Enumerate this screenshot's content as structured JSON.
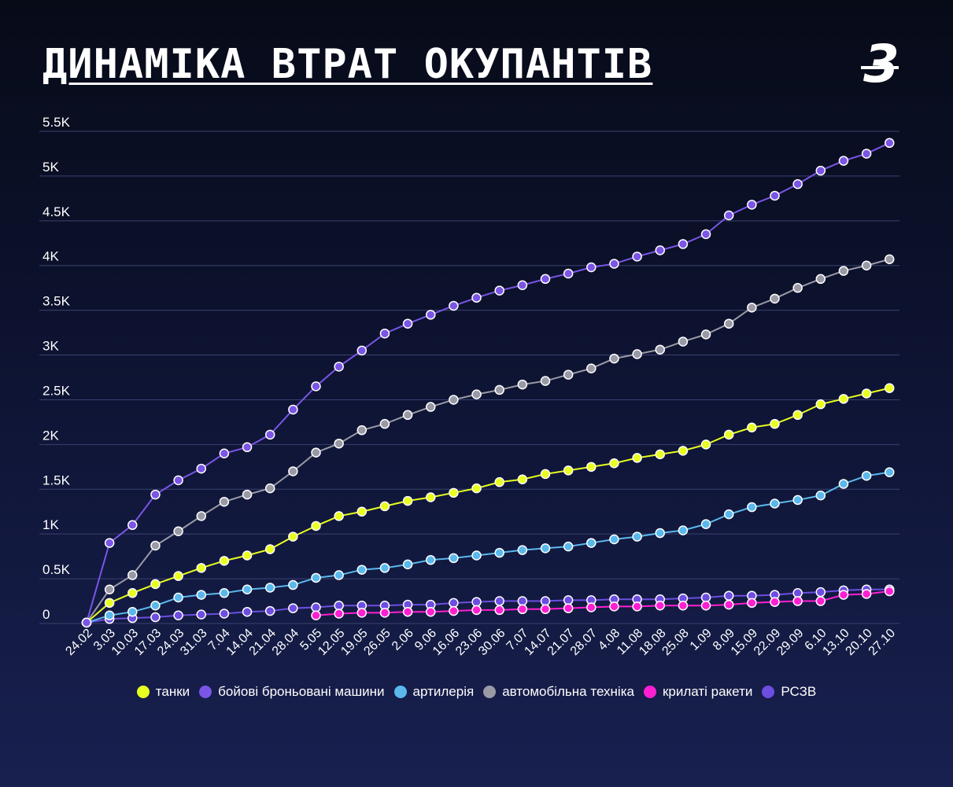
{
  "header": {
    "title": "ДИНАМІКА ВТРАТ ОКУПАНТІВ",
    "logo_glyph": "3"
  },
  "colors": {
    "background": "#0d1331",
    "grid": "#3a4270",
    "tanks": "#e8ff1f",
    "ifv": "#7a55e6",
    "artillery": "#5ab8ec",
    "vehicles": "#9a9aa6",
    "missiles": "#ff1fd2",
    "mlrs": "#6d4ee0"
  },
  "chart_data": {
    "type": "line",
    "title": "ДИНАМІКА ВТРАТ ОКУПАНТІВ",
    "xlabel": "",
    "ylabel": "",
    "ylim": [
      0,
      5500
    ],
    "y_ticks": [
      0,
      500,
      1000,
      1500,
      2000,
      2500,
      3000,
      3500,
      4000,
      4500,
      5000,
      5500
    ],
    "y_tick_labels": [
      "0",
      "0.5K",
      "1K",
      "1.5K",
      "2K",
      "2.5K",
      "3K",
      "3.5K",
      "4K",
      "4.5K",
      "5K",
      "5.5K"
    ],
    "grid": true,
    "legend_position": "bottom-center",
    "categories": [
      "24.02",
      "3.03",
      "10.03",
      "17.03",
      "24.03",
      "31.03",
      "7.04",
      "14.04",
      "21.04",
      "28.04",
      "5.05",
      "12.05",
      "19.05",
      "26.05",
      "2.06",
      "9.06",
      "16.06",
      "23.06",
      "30.06",
      "7.07",
      "14.07",
      "21.07",
      "28.07",
      "4.08",
      "11.08",
      "18.08",
      "25.08",
      "1.09",
      "8.09",
      "15.09",
      "22.09",
      "29.09",
      "6.10",
      "13.10",
      "20.10",
      "27.10"
    ],
    "series": [
      {
        "name": "танки",
        "color_key": "tanks",
        "values": [
          10,
          230,
          340,
          440,
          530,
          620,
          700,
          760,
          830,
          970,
          1090,
          1200,
          1250,
          1310,
          1370,
          1410,
          1460,
          1510,
          1580,
          1610,
          1670,
          1710,
          1750,
          1790,
          1850,
          1890,
          1930,
          2000,
          2110,
          2190,
          2230,
          2330,
          2450,
          2510,
          2570,
          2630
        ]
      },
      {
        "name": "бойові броньовані машини",
        "color_key": "ifv",
        "values": [
          10,
          900,
          1100,
          1440,
          1600,
          1730,
          1900,
          1970,
          2110,
          2390,
          2650,
          2870,
          3050,
          3240,
          3350,
          3450,
          3550,
          3640,
          3720,
          3780,
          3850,
          3910,
          3980,
          4020,
          4100,
          4170,
          4240,
          4350,
          4560,
          4680,
          4780,
          4910,
          5060,
          5170,
          5250,
          5370
        ]
      },
      {
        "name": "артилерія",
        "color_key": "artillery",
        "values": [
          10,
          90,
          130,
          200,
          290,
          320,
          340,
          380,
          400,
          430,
          510,
          540,
          600,
          620,
          660,
          710,
          730,
          760,
          790,
          820,
          840,
          860,
          900,
          940,
          970,
          1010,
          1040,
          1110,
          1220,
          1300,
          1340,
          1380,
          1430,
          1560,
          1650,
          1690
        ]
      },
      {
        "name": "автомобільна техніка",
        "color_key": "vehicles",
        "values": [
          10,
          380,
          540,
          870,
          1030,
          1200,
          1360,
          1440,
          1510,
          1700,
          1910,
          2010,
          2160,
          2230,
          2330,
          2420,
          2500,
          2560,
          2610,
          2670,
          2710,
          2780,
          2850,
          2960,
          3010,
          3060,
          3150,
          3230,
          3350,
          3530,
          3630,
          3750,
          3850,
          3940,
          4000,
          4070
        ]
      },
      {
        "name": "крилаті ракети",
        "color_key": "missiles",
        "values": [
          null,
          null,
          null,
          null,
          null,
          null,
          null,
          null,
          null,
          null,
          90,
          110,
          120,
          120,
          130,
          130,
          140,
          150,
          150,
          160,
          160,
          170,
          180,
          190,
          190,
          200,
          200,
          200,
          210,
          230,
          240,
          250,
          250,
          320,
          330,
          360
        ]
      },
      {
        "name": "РСЗВ",
        "color_key": "mlrs",
        "values": [
          10,
          50,
          60,
          70,
          90,
          100,
          110,
          130,
          140,
          170,
          180,
          200,
          200,
          200,
          210,
          210,
          230,
          240,
          250,
          250,
          250,
          260,
          260,
          270,
          270,
          270,
          280,
          290,
          310,
          310,
          320,
          340,
          350,
          370,
          380,
          380
        ]
      }
    ]
  }
}
